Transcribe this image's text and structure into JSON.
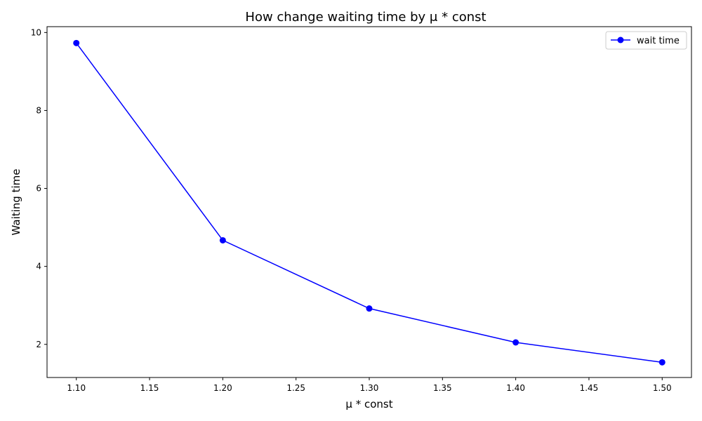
{
  "chart_data": {
    "type": "line",
    "title": "How change waiting time by μ * const",
    "xlabel": "μ * const",
    "ylabel": "Waiting time",
    "x": [
      1.1,
      1.2,
      1.3,
      1.4,
      1.5
    ],
    "series": [
      {
        "name": "wait time",
        "values": [
          9.73,
          4.67,
          2.92,
          2.05,
          1.54
        ],
        "color": "#0000ff"
      }
    ],
    "xlim": [
      1.08,
      1.52
    ],
    "ylim": [
      1.15,
      10.15
    ],
    "xticks": [
      "1.10",
      "1.15",
      "1.20",
      "1.25",
      "1.30",
      "1.35",
      "1.40",
      "1.45",
      "1.50"
    ],
    "yticks": [
      "2",
      "4",
      "6",
      "8",
      "10"
    ],
    "grid": false,
    "legend_position": "top-right"
  }
}
